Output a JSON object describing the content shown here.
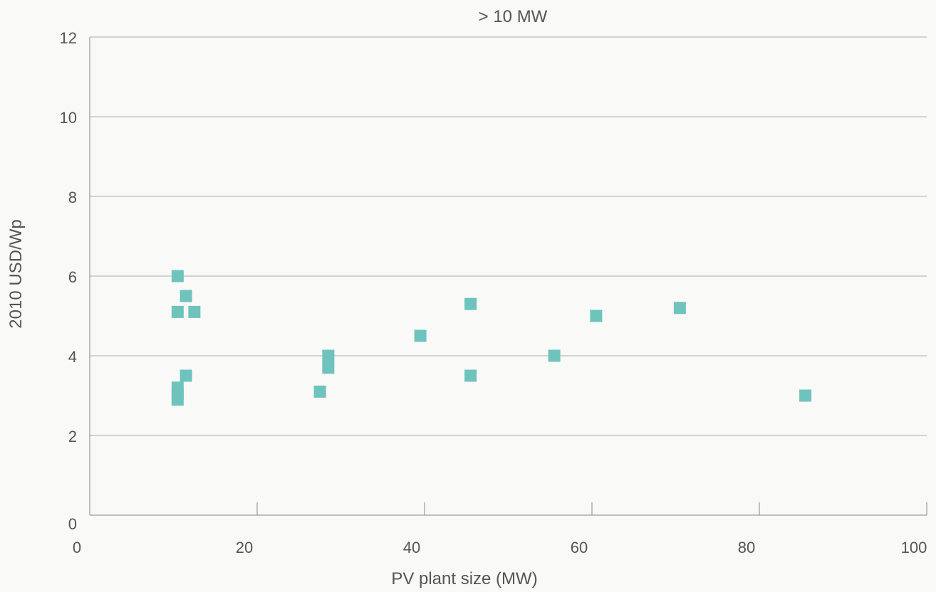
{
  "chart_data": {
    "type": "scatter",
    "title": "> 10 MW",
    "xlabel": "PV plant size (MW)",
    "ylabel": "2010 USD/Wp",
    "xlim": [
      0,
      100
    ],
    "ylim": [
      0,
      12
    ],
    "xticks": [
      0,
      20,
      40,
      60,
      80,
      100
    ],
    "yticks": [
      0,
      2,
      4,
      6,
      8,
      10,
      12
    ],
    "grid": "horizontal",
    "marker": "square",
    "marker_color": "#6fc3bd",
    "points": [
      {
        "x": 10.5,
        "y": 6.0
      },
      {
        "x": 11.5,
        "y": 5.5
      },
      {
        "x": 10.5,
        "y": 5.1
      },
      {
        "x": 12.5,
        "y": 5.1
      },
      {
        "x": 11.5,
        "y": 3.5
      },
      {
        "x": 10.5,
        "y": 3.2
      },
      {
        "x": 10.5,
        "y": 3.05
      },
      {
        "x": 10.5,
        "y": 2.9
      },
      {
        "x": 27.5,
        "y": 3.1
      },
      {
        "x": 28.5,
        "y": 4.0
      },
      {
        "x": 28.5,
        "y": 3.7
      },
      {
        "x": 39.5,
        "y": 4.5
      },
      {
        "x": 45.5,
        "y": 5.3
      },
      {
        "x": 45.5,
        "y": 3.5
      },
      {
        "x": 55.5,
        "y": 4.0
      },
      {
        "x": 60.5,
        "y": 5.0
      },
      {
        "x": 70.5,
        "y": 5.2
      },
      {
        "x": 85.5,
        "y": 3.0
      }
    ]
  }
}
